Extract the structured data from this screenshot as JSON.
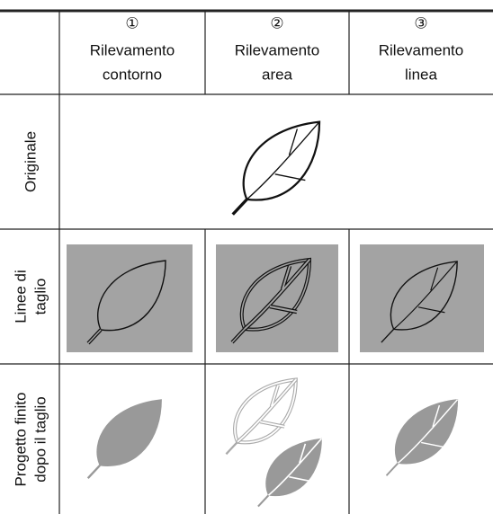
{
  "header": {
    "columns": [
      {
        "number": "①",
        "line1": "Rilevamento",
        "line2": "contorno"
      },
      {
        "number": "②",
        "line1": "Rilevamento",
        "line2": "area"
      },
      {
        "number": "③",
        "line1": "Rilevamento",
        "line2": "linea"
      }
    ]
  },
  "rows": [
    {
      "lines": [
        "Originale"
      ]
    },
    {
      "lines": [
        "Linee di",
        "taglio"
      ]
    },
    {
      "lines": [
        "Progetto finito",
        "dopo il taglio"
      ]
    }
  ]
}
